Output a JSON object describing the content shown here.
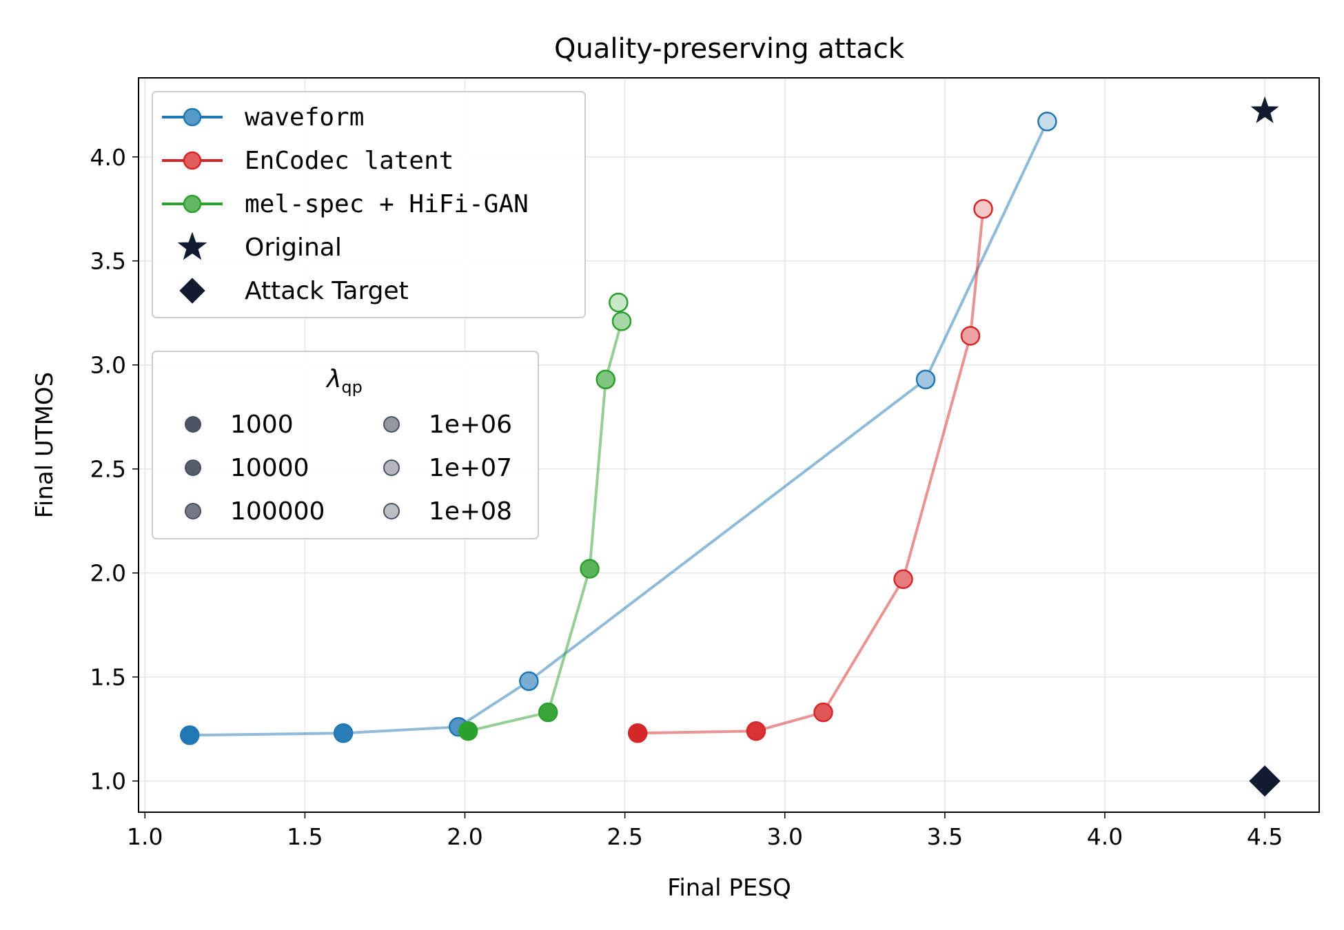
{
  "chart_data": {
    "type": "line",
    "title": "Quality-preserving attack",
    "xlabel": "Final PESQ",
    "ylabel": "Final UTMOS",
    "xlim": [
      0.98,
      4.67
    ],
    "ylim": [
      0.85,
      4.38
    ],
    "x_ticks": [
      "1.0",
      "1.5",
      "2.0",
      "2.5",
      "3.0",
      "3.5",
      "4.0",
      "4.5"
    ],
    "y_ticks": [
      "1.0",
      "1.5",
      "2.0",
      "2.5",
      "3.0",
      "3.5",
      "4.0"
    ],
    "grid": true,
    "colors": {
      "waveform": "#1f77b4",
      "encodec": "#d62728",
      "melspec": "#2ca02c",
      "marker": "#111a2e"
    },
    "series": [
      {
        "name": "waveform",
        "color_key": "waveform",
        "x": [
          1.14,
          1.62,
          1.98,
          2.2,
          3.44,
          3.82
        ],
        "y": [
          1.22,
          1.23,
          1.26,
          1.48,
          2.93,
          4.17
        ]
      },
      {
        "name": "EnCodec latent",
        "color_key": "encodec",
        "x": [
          2.54,
          2.91,
          3.12,
          3.37,
          3.58,
          3.62
        ],
        "y": [
          1.23,
          1.24,
          1.33,
          1.97,
          3.14,
          3.75
        ]
      },
      {
        "name": "mel-spec + HiFi-GAN",
        "color_key": "melspec",
        "x": [
          2.01,
          2.26,
          2.39,
          2.44,
          2.49,
          2.48
        ],
        "y": [
          1.24,
          1.33,
          2.02,
          2.93,
          3.21,
          3.3
        ]
      }
    ],
    "reference_points": [
      {
        "name": "Original",
        "marker": "star",
        "x": 4.5,
        "y": 4.22
      },
      {
        "name": "Attack Target",
        "marker": "diamond",
        "x": 4.5,
        "y": 1.0
      }
    ],
    "lambda_values": [
      "1000",
      "10000",
      "100000",
      "1e+06",
      "1e+07",
      "1e+08"
    ],
    "lambda_alphas": [
      1.0,
      0.95,
      0.78,
      0.6,
      0.42,
      0.25
    ],
    "legend": {
      "placement": "top-left",
      "entries": [
        "waveform",
        "EnCodec latent",
        "mel-spec + HiFi-GAN",
        "Original",
        "Attack Target"
      ]
    },
    "lambda_legend": {
      "title_symbol": "λ",
      "title_subscript": "qp",
      "placement": "center-left"
    }
  }
}
